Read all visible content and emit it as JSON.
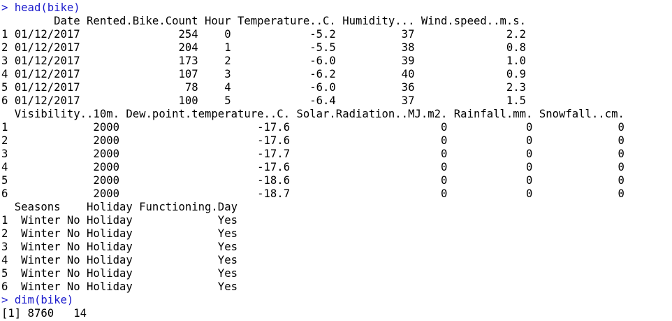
{
  "console": {
    "commands": [
      {
        "prompt": ">",
        "text": "head(bike)"
      },
      {
        "prompt": ">",
        "text": "dim(bike)"
      }
    ],
    "output_lines": [
      "        Date Rented.Bike.Count Hour Temperature..C. Humidity... Wind.speed..m.s.",
      "1 01/12/2017               254    0            -5.2          37              2.2",
      "2 01/12/2017               204    1            -5.5          38              0.8",
      "3 01/12/2017               173    2            -6.0          39              1.0",
      "4 01/12/2017               107    3            -6.2          40              0.9",
      "5 01/12/2017                78    4            -6.0          36              2.3",
      "6 01/12/2017               100    5            -6.4          37              1.5",
      "  Visibility..10m. Dew.point.temperature..C. Solar.Radiation..MJ.m2. Rainfall.mm. Snowfall..cm.",
      "1             2000                     -17.6                       0            0             0",
      "2             2000                     -17.6                       0            0             0",
      "3             2000                     -17.7                       0            0             0",
      "4             2000                     -17.6                       0            0             0",
      "5             2000                     -18.6                       0            0             0",
      "6             2000                     -18.7                       0            0             0",
      "  Seasons    Holiday Functioning.Day",
      "1  Winter No Holiday             Yes",
      "2  Winter No Holiday             Yes",
      "3  Winter No Holiday             Yes",
      "4  Winter No Holiday             Yes",
      "5  Winter No Holiday             Yes",
      "6  Winter No Holiday             Yes"
    ],
    "dim_result": "[1] 8760   14"
  }
}
